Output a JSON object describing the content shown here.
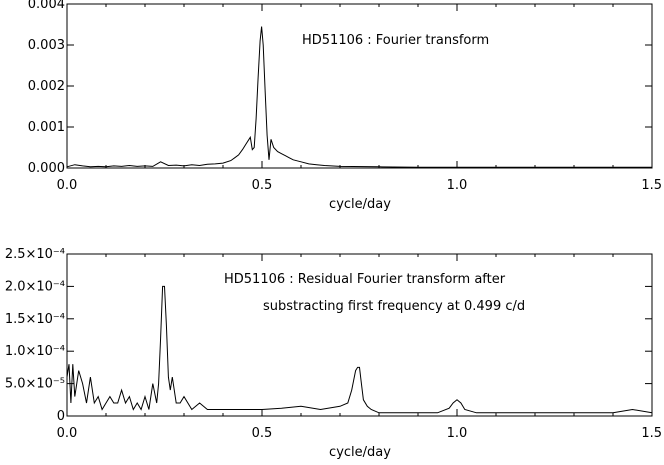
{
  "chart_data": [
    {
      "type": "line",
      "title": "HD51106 : Fourier transform",
      "xlabel": "cycle/day",
      "ylabel": "",
      "xlim": [
        0.0,
        1.5
      ],
      "ylim": [
        0.0,
        0.004
      ],
      "xticks": [
        "0.0",
        "0.5",
        "1.0",
        "1.5"
      ],
      "xtick_values": [
        0.0,
        0.5,
        1.0,
        1.5
      ],
      "yticks": [
        "0.000",
        "0.001",
        "0.002",
        "0.003",
        "0.004"
      ],
      "ytick_values": [
        0.0,
        0.001,
        0.002,
        0.003,
        0.004
      ],
      "grid": false,
      "series": [
        {
          "x": [
            0.0,
            0.02,
            0.04,
            0.06,
            0.08,
            0.1,
            0.12,
            0.14,
            0.16,
            0.18,
            0.2,
            0.22,
            0.24,
            0.26,
            0.28,
            0.3,
            0.32,
            0.34,
            0.36,
            0.38,
            0.4,
            0.42,
            0.43,
            0.44,
            0.45,
            0.46,
            0.47,
            0.475,
            0.48,
            0.485,
            0.49,
            0.495,
            0.499,
            0.503,
            0.508,
            0.513,
            0.518,
            0.523,
            0.53,
            0.54,
            0.55,
            0.56,
            0.57,
            0.58,
            0.6,
            0.62,
            0.64,
            0.66,
            0.7,
            0.8,
            0.9,
            1.0,
            1.1,
            1.2,
            1.3,
            1.4,
            1.5
          ],
          "y": [
            3e-05,
            8e-05,
            5e-05,
            3e-05,
            4e-05,
            3e-05,
            5e-05,
            4e-05,
            6e-05,
            4e-05,
            5e-05,
            4e-05,
            0.00015,
            6e-05,
            7e-05,
            5e-05,
            8e-05,
            6e-05,
            9e-05,
            0.0001,
            0.00012,
            0.00018,
            0.00025,
            0.00032,
            0.00045,
            0.0006,
            0.00075,
            0.00045,
            0.0005,
            0.0012,
            0.0022,
            0.0031,
            0.00345,
            0.003,
            0.0019,
            0.0008,
            0.0002,
            0.0007,
            0.0005,
            0.0004,
            0.00035,
            0.0003,
            0.00025,
            0.0002,
            0.00015,
            0.0001,
            8e-05,
            6e-05,
            4e-05,
            3e-05,
            2e-05,
            2e-05,
            2e-05,
            2e-05,
            2e-05,
            2e-05,
            2e-05
          ]
        }
      ]
    },
    {
      "type": "line",
      "title": "HD51106 : Residual Fourier transform after",
      "subtitle": "substracting first frequency at 0.499 c/d",
      "xlabel": "cycle/day",
      "ylabel": "",
      "xlim": [
        0.0,
        1.5
      ],
      "ylim": [
        0.0,
        0.00025
      ],
      "xticks": [
        "0.0",
        "0.5",
        "1.0",
        "1.5"
      ],
      "xtick_values": [
        0.0,
        0.5,
        1.0,
        1.5
      ],
      "yticks": [
        "0",
        "5.0×10⁻⁵",
        "1.0×10⁻⁴",
        "1.5×10⁻⁴",
        "2.0×10⁻⁴",
        "2.5×10⁻⁴"
      ],
      "ytick_values": [
        0.0,
        5e-05,
        0.0001,
        0.00015,
        0.0002,
        0.00025
      ],
      "grid": false,
      "series": [
        {
          "x": [
            0.0,
            0.005,
            0.01,
            0.015,
            0.02,
            0.03,
            0.04,
            0.05,
            0.06,
            0.07,
            0.08,
            0.09,
            0.1,
            0.11,
            0.12,
            0.13,
            0.14,
            0.15,
            0.16,
            0.17,
            0.18,
            0.19,
            0.2,
            0.21,
            0.22,
            0.23,
            0.235,
            0.24,
            0.245,
            0.25,
            0.255,
            0.26,
            0.265,
            0.27,
            0.28,
            0.29,
            0.3,
            0.32,
            0.34,
            0.36,
            0.38,
            0.4,
            0.45,
            0.5,
            0.55,
            0.6,
            0.65,
            0.7,
            0.72,
            0.73,
            0.74,
            0.745,
            0.75,
            0.755,
            0.76,
            0.77,
            0.78,
            0.8,
            0.85,
            0.9,
            0.95,
            0.98,
            0.99,
            1.0,
            1.01,
            1.02,
            1.05,
            1.1,
            1.2,
            1.3,
            1.4,
            1.45,
            1.5
          ],
          "y": [
            6e-05,
            8e-05,
            2e-05,
            8e-05,
            3e-05,
            7e-05,
            5e-05,
            2e-05,
            6e-05,
            2e-05,
            3e-05,
            1e-05,
            2e-05,
            3e-05,
            2e-05,
            2e-05,
            4e-05,
            2e-05,
            3e-05,
            1e-05,
            2e-05,
            1e-05,
            3e-05,
            1e-05,
            5e-05,
            2e-05,
            5e-05,
            0.00012,
            0.0002,
            0.0002,
            0.00014,
            6e-05,
            4e-05,
            6e-05,
            2e-05,
            2e-05,
            3e-05,
            1e-05,
            2e-05,
            1e-05,
            1e-05,
            1e-05,
            1e-05,
            1e-05,
            1.2e-05,
            1.5e-05,
            1e-05,
            1.5e-05,
            2e-05,
            4e-05,
            7e-05,
            7.5e-05,
            7.5e-05,
            5e-05,
            2.5e-05,
            1.5e-05,
            1e-05,
            5e-06,
            5e-06,
            5e-06,
            5e-06,
            1.2e-05,
            2e-05,
            2.5e-05,
            2e-05,
            1e-05,
            5e-06,
            5e-06,
            5e-06,
            5e-06,
            5e-06,
            1e-05,
            5e-06
          ]
        }
      ]
    }
  ]
}
